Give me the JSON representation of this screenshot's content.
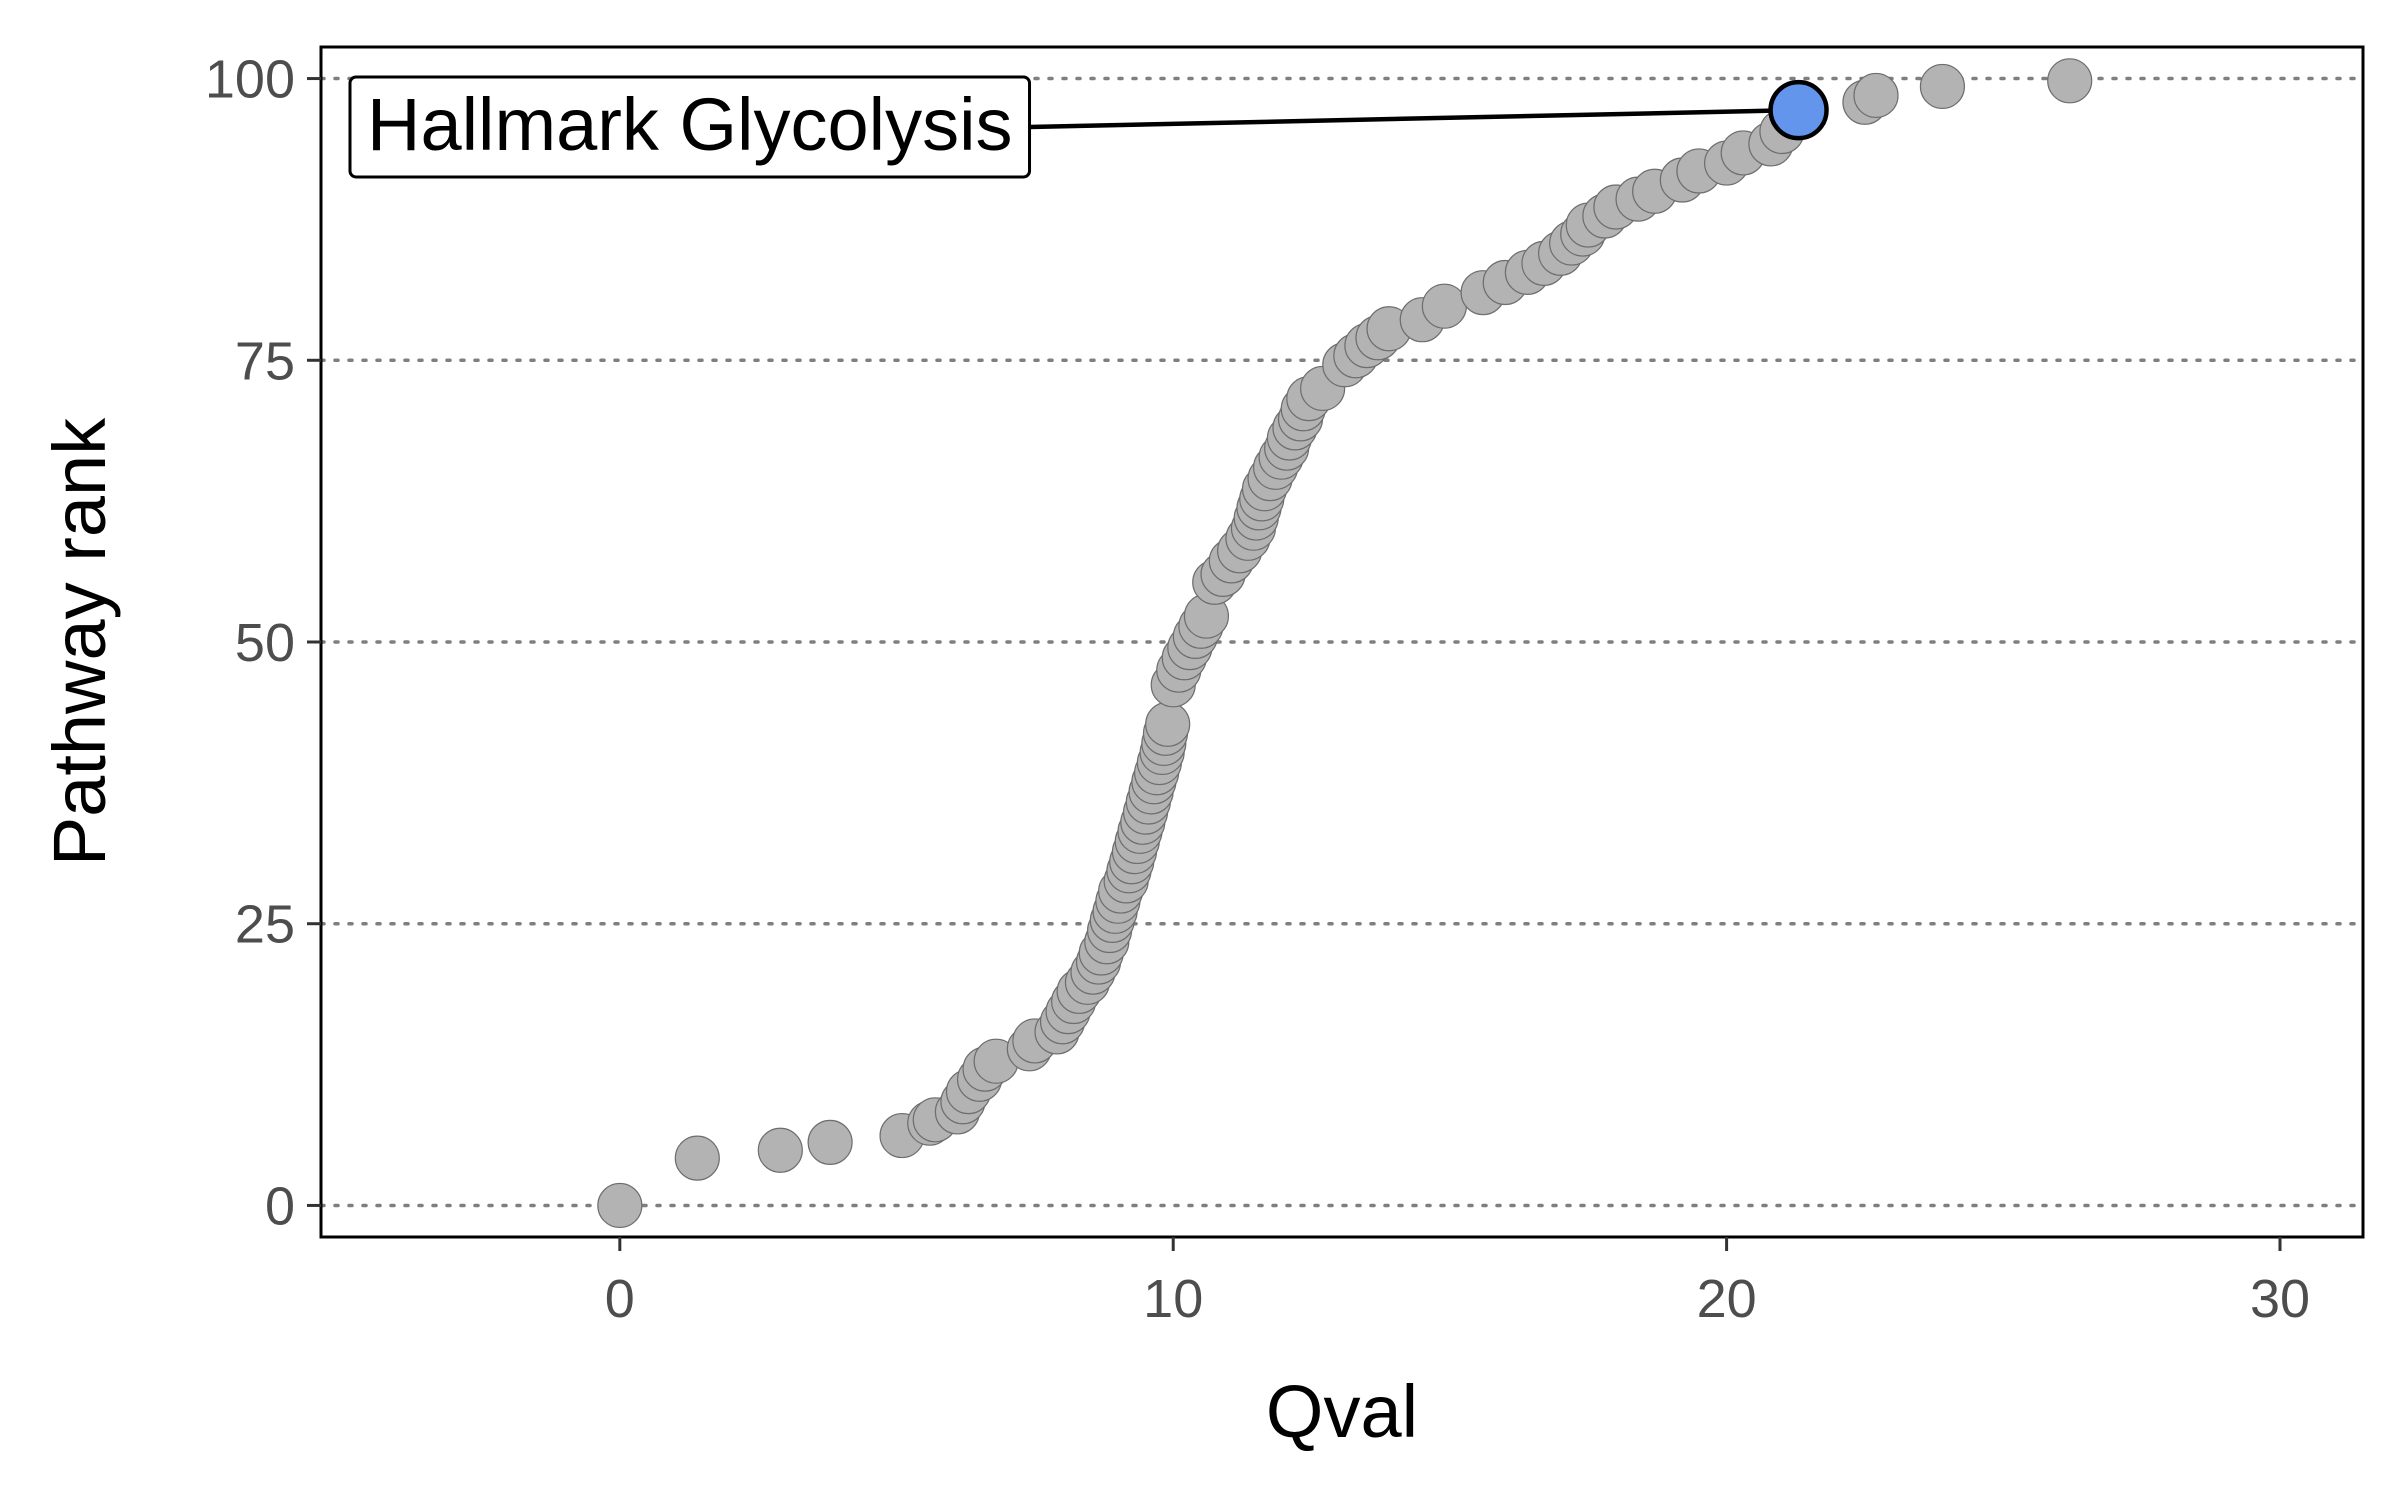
{
  "colors": {
    "point_fill": "#b3b3b3",
    "point_stroke": "#6e6e6e",
    "highlight_fill": "#6495ed",
    "highlight_stroke": "#000000",
    "grid": "#7f7f7f",
    "panel_border": "#000000",
    "tick_text": "#4d4d4d"
  },
  "chart_data": {
    "type": "scatter",
    "xlabel": "Qval",
    "ylabel": "Pathway rank",
    "xlim": [
      -5.4,
      31.5
    ],
    "ylim": [
      -2.8,
      102.8
    ],
    "x_ticks": [
      0,
      10,
      20,
      30
    ],
    "y_ticks": [
      0,
      25,
      50,
      75,
      100
    ],
    "grid": "horizontal dotted lines at major y ticks",
    "legend": "none",
    "highlight": {
      "label": "Hallmark Glycolysis",
      "x": 21.3,
      "y": 97.2,
      "label_position": "top-left"
    },
    "points": [
      [
        0.0,
        0.0
      ],
      [
        1.4,
        4.2
      ],
      [
        2.9,
        4.9
      ],
      [
        3.8,
        5.6
      ],
      [
        5.1,
        6.2
      ],
      [
        5.6,
        7.3
      ],
      [
        5.7,
        7.6
      ],
      [
        6.1,
        8.3
      ],
      [
        6.2,
        9.2
      ],
      [
        6.3,
        10.1
      ],
      [
        6.5,
        11.2
      ],
      [
        6.6,
        12.1
      ],
      [
        6.8,
        12.8
      ],
      [
        7.4,
        13.9
      ],
      [
        7.5,
        14.6
      ],
      [
        7.9,
        15.4
      ],
      [
        8.0,
        16.3
      ],
      [
        8.1,
        17.2
      ],
      [
        8.2,
        18.1
      ],
      [
        8.3,
        19.0
      ],
      [
        8.45,
        19.8
      ],
      [
        8.55,
        20.7
      ],
      [
        8.65,
        21.6
      ],
      [
        8.7,
        22.4
      ],
      [
        8.8,
        23.4
      ],
      [
        8.85,
        24.4
      ],
      [
        8.9,
        25.3
      ],
      [
        8.95,
        26.1
      ],
      [
        9.0,
        27.0
      ],
      [
        9.05,
        27.9
      ],
      [
        9.15,
        28.8
      ],
      [
        9.2,
        29.7
      ],
      [
        9.25,
        30.5
      ],
      [
        9.3,
        31.4
      ],
      [
        9.35,
        32.3
      ],
      [
        9.4,
        33.2
      ],
      [
        9.45,
        34.0
      ],
      [
        9.5,
        34.9
      ],
      [
        9.55,
        35.8
      ],
      [
        9.6,
        36.7
      ],
      [
        9.65,
        37.6
      ],
      [
        9.7,
        38.4
      ],
      [
        9.75,
        39.3
      ],
      [
        9.8,
        40.2
      ],
      [
        9.83,
        41.0
      ],
      [
        9.86,
        41.9
      ],
      [
        9.9,
        42.7
      ],
      [
        10.0,
        46.2
      ],
      [
        10.1,
        47.5
      ],
      [
        10.2,
        48.6
      ],
      [
        10.3,
        49.5
      ],
      [
        10.4,
        50.5
      ],
      [
        10.5,
        51.4
      ],
      [
        10.6,
        52.3
      ],
      [
        10.75,
        55.3
      ],
      [
        10.9,
        56.0
      ],
      [
        11.05,
        57.2
      ],
      [
        11.2,
        58.1
      ],
      [
        11.35,
        59.2
      ],
      [
        11.45,
        60.1
      ],
      [
        11.5,
        61.0
      ],
      [
        11.55,
        61.9
      ],
      [
        11.6,
        62.7
      ],
      [
        11.65,
        63.6
      ],
      [
        11.75,
        64.5
      ],
      [
        11.85,
        65.5
      ],
      [
        11.95,
        66.4
      ],
      [
        12.05,
        67.2
      ],
      [
        12.1,
        68.1
      ],
      [
        12.2,
        69.0
      ],
      [
        12.3,
        69.8
      ],
      [
        12.35,
        70.7
      ],
      [
        12.45,
        71.6
      ],
      [
        12.7,
        72.5
      ],
      [
        13.1,
        74.6
      ],
      [
        13.3,
        75.4
      ],
      [
        13.5,
        76.3
      ],
      [
        13.7,
        77.0
      ],
      [
        13.9,
        77.8
      ],
      [
        14.5,
        78.6
      ],
      [
        14.9,
        79.8
      ],
      [
        15.6,
        81.0
      ],
      [
        16.0,
        81.9
      ],
      [
        16.4,
        82.8
      ],
      [
        16.7,
        83.6
      ],
      [
        17.0,
        84.5
      ],
      [
        17.2,
        85.4
      ],
      [
        17.4,
        86.2
      ],
      [
        17.5,
        87.0
      ],
      [
        17.8,
        87.8
      ],
      [
        18.0,
        88.6
      ],
      [
        18.4,
        89.3
      ],
      [
        18.7,
        90.0
      ],
      [
        19.2,
        91.0
      ],
      [
        19.5,
        91.8
      ],
      [
        20.0,
        92.5
      ],
      [
        20.3,
        93.4
      ],
      [
        20.8,
        94.2
      ],
      [
        21.0,
        95.3
      ],
      [
        22.5,
        97.9
      ],
      [
        22.7,
        98.5
      ],
      [
        23.9,
        99.3
      ],
      [
        26.2,
        99.8
      ]
    ]
  }
}
